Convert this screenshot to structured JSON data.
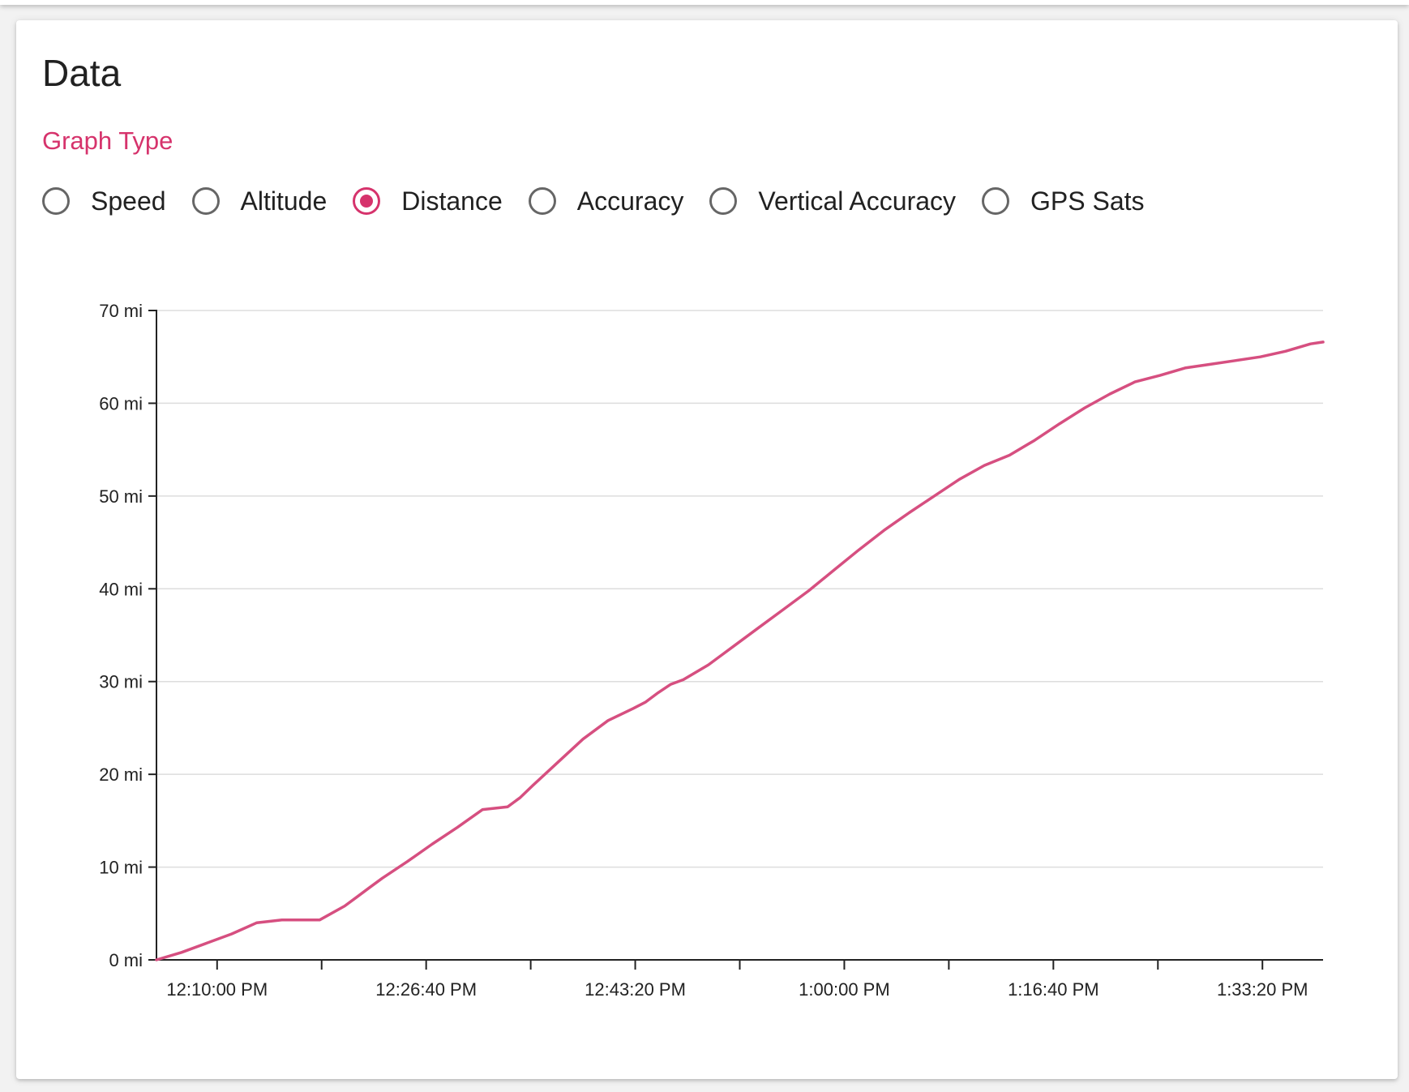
{
  "card": {
    "title": "Data"
  },
  "graph_type": {
    "label": "Graph Type",
    "selected": "Distance",
    "options": [
      "Speed",
      "Altitude",
      "Distance",
      "Accuracy",
      "Vertical Accuracy",
      "GPS Sats"
    ]
  },
  "colors": {
    "accent": "#d6336c",
    "line": "#d64f80",
    "grid": "#dddddd",
    "axis": "#222222"
  },
  "chart_data": {
    "type": "line",
    "title": "",
    "xlabel": "",
    "ylabel": "",
    "y_unit": "mi",
    "ylim": [
      0,
      70
    ],
    "xlim": [
      "12:05:10 PM",
      "1:38:10 PM"
    ],
    "grid": "horizontal",
    "y_ticks": [
      "0 mi",
      "10 mi",
      "20 mi",
      "30 mi",
      "40 mi",
      "50 mi",
      "60 mi",
      "70 mi"
    ],
    "y_tick_values": [
      0,
      10,
      20,
      30,
      40,
      50,
      60,
      70
    ],
    "x_tick_labels": [
      "12:10:00 PM",
      "12:26:40 PM",
      "12:43:20 PM",
      "1:00:00 PM",
      "1:16:40 PM",
      "1:33:20 PM"
    ],
    "x_tick_values": [
      "12:10:00 PM",
      "12:18:20 PM",
      "12:26:40 PM",
      "12:35:00 PM",
      "12:43:20 PM",
      "12:51:40 PM",
      "1:00:00 PM",
      "1:08:20 PM",
      "1:16:40 PM",
      "1:25:00 PM",
      "1:33:20 PM"
    ],
    "series": [
      {
        "x": [
          "12:05:10 PM",
          "12:07:10 PM",
          "12:09:10 PM",
          "12:11:10 PM",
          "12:13:10 PM",
          "12:15:10 PM",
          "12:16:10 PM",
          "12:17:10 PM",
          "12:18:10 PM",
          "12:20:10 PM",
          "12:21:10 PM",
          "12:22:10 PM",
          "12:23:10 PM",
          "12:25:10 PM",
          "12:27:10 PM",
          "12:29:10 PM",
          "12:31:10 PM",
          "12:33:10 PM",
          "12:34:10 PM",
          "12:35:10 PM",
          "12:37:10 PM",
          "12:39:10 PM",
          "12:41:10 PM",
          "12:43:10 PM",
          "12:44:10 PM",
          "12:45:10 PM",
          "12:46:10 PM",
          "12:47:10 PM",
          "12:49:10 PM",
          "12:51:10 PM",
          "12:53:10 PM",
          "12:55:10 PM",
          "12:57:10 PM",
          "12:59:10 PM",
          "1:01:10 PM",
          "1:03:10 PM",
          "1:05:10 PM",
          "1:07:10 PM",
          "1:09:10 PM",
          "1:11:10 PM",
          "1:13:10 PM",
          "1:15:10 PM",
          "1:17:10 PM",
          "1:19:10 PM",
          "1:21:10 PM",
          "1:23:10 PM",
          "1:25:10 PM",
          "1:27:10 PM",
          "1:29:10 PM",
          "1:31:10 PM",
          "1:33:10 PM",
          "1:35:10 PM",
          "1:37:10 PM",
          "1:38:10 PM"
        ],
        "y": [
          0,
          0.8,
          1.8,
          2.8,
          4.0,
          4.3,
          4.3,
          4.3,
          4.3,
          5.8,
          6.8,
          7.8,
          8.8,
          10.6,
          12.5,
          14.3,
          16.2,
          16.5,
          17.5,
          18.8,
          21.3,
          23.8,
          25.8,
          27.1,
          27.8,
          28.8,
          29.7,
          30.2,
          31.8,
          33.8,
          35.8,
          37.8,
          39.8,
          42.0,
          44.2,
          46.3,
          48.2,
          50.0,
          51.8,
          53.3,
          54.4,
          56.0,
          57.8,
          59.5,
          61.0,
          62.3,
          63.0,
          63.8,
          64.2,
          64.6,
          65.0,
          65.6,
          66.4,
          66.6
        ]
      }
    ]
  }
}
